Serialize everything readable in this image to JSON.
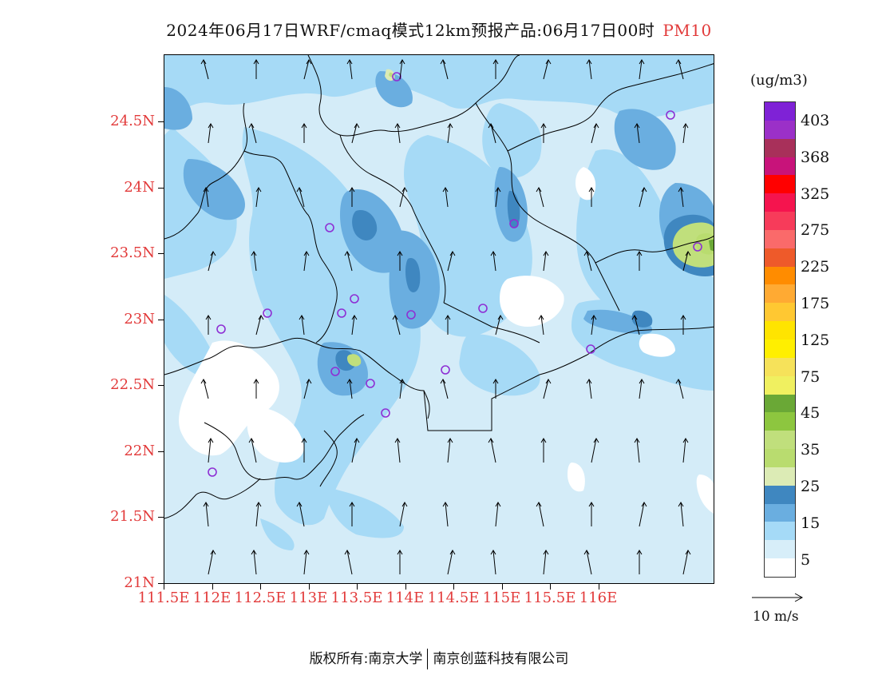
{
  "header": {
    "title": "2024年06月17日WRF/cmaq模式12km预报产品:06月17日00时",
    "variable": "PM10",
    "variable_color": "#e23a3a"
  },
  "map": {
    "lat_labels": [
      "24.5N",
      "24N",
      "23.5N",
      "23N",
      "22.5N",
      "22N",
      "21.5N",
      "21N"
    ],
    "lon_labels": [
      "111.5E",
      "112E",
      "112.5E",
      "113E",
      "113.5E",
      "114E",
      "114.5E",
      "115E",
      "115.5E",
      "116E"
    ],
    "label_color": "#e23a3a"
  },
  "legend": {
    "unit": "(ug/m3)",
    "labels": [
      "403",
      "368",
      "325",
      "275",
      "225",
      "175",
      "125",
      "75",
      "45",
      "35",
      "25",
      "15",
      "5"
    ],
    "colors": [
      "#7f22d6",
      "#9b30c8",
      "#a8305a",
      "#c8137a",
      "#ff0000",
      "#f5144e",
      "#f73b5a",
      "#fa6a6a",
      "#ee5a2a",
      "#ff8c00",
      "#ffaa33",
      "#ffc832",
      "#ffe400",
      "#ffef00",
      "#f6e25a",
      "#f0f060",
      "#6aa836",
      "#8dc63f",
      "#c0df7c",
      "#b9dc6f",
      "#dcebb5",
      "#3f87c0",
      "#6aaee0",
      "#a5daf7",
      "#d7eef9",
      "#ffffff"
    ]
  },
  "wind_reference": {
    "label": "10 m/s"
  },
  "footer": {
    "left": "版权所有:南京大学",
    "right": "南京创蓝科技有限公司"
  }
}
